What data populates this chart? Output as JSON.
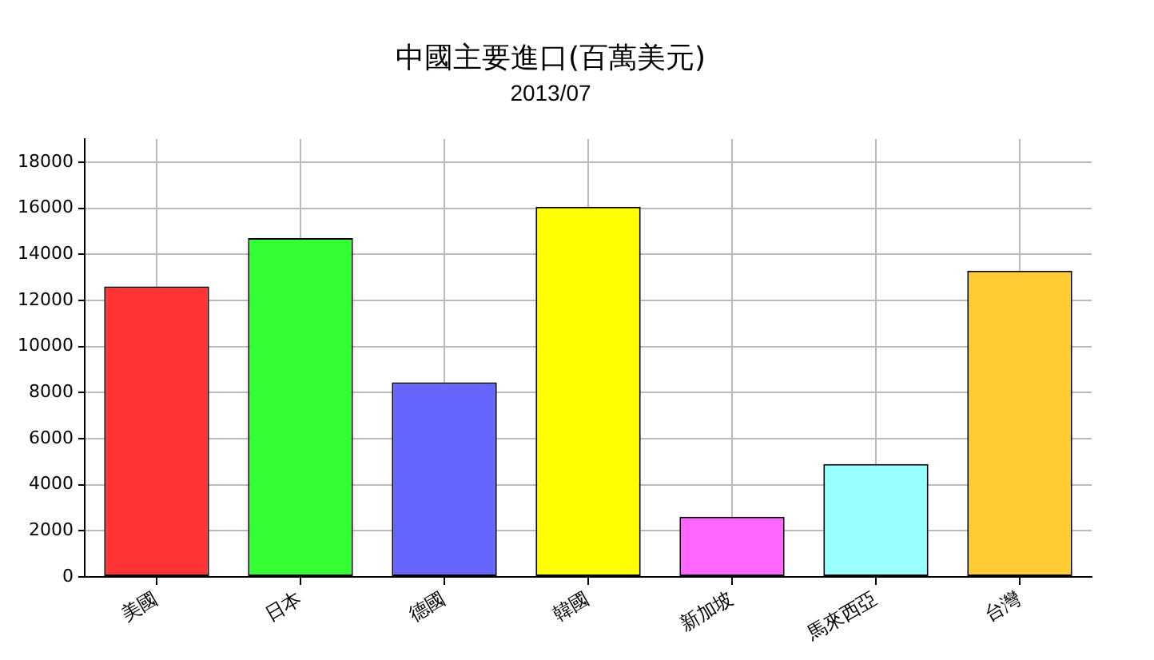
{
  "chart_data": {
    "type": "bar",
    "title": "中國主要進口(百萬美元)",
    "subtitle": "2013/07",
    "categories": [
      "美國",
      "日本",
      "德國",
      "韓國",
      "新加坡",
      "馬來西亞",
      "台灣"
    ],
    "values": [
      12600,
      14700,
      8440,
      16060,
      2610,
      4900,
      13290
    ],
    "colors": [
      "#ff3333",
      "#33ff33",
      "#6666ff",
      "#ffff00",
      "#ff66ff",
      "#99ffff",
      "#ffcc33"
    ],
    "ylim": [
      0,
      19000
    ],
    "yticks": [
      0,
      2000,
      4000,
      6000,
      8000,
      10000,
      12000,
      14000,
      16000,
      18000
    ],
    "grid": true
  }
}
